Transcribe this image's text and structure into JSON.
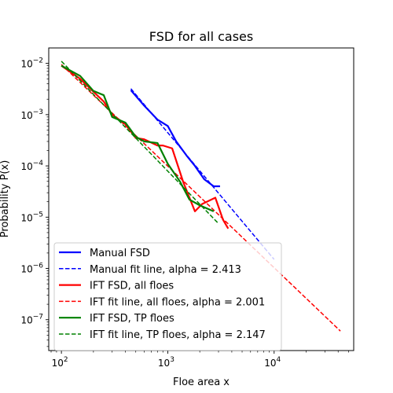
{
  "chart_data": {
    "type": "line",
    "title": "FSD for all cases",
    "xlabel": "Floe area x",
    "ylabel": "Probability P(x)",
    "xscale": "log",
    "yscale": "log",
    "xlim": [
      76,
      56000
    ],
    "ylim": [
      2.5e-08,
      0.02
    ],
    "grid": false,
    "legend_position": "lower-left",
    "x_ticks": [
      {
        "value": 100,
        "base": "10",
        "exp": "2"
      },
      {
        "value": 1000,
        "base": "10",
        "exp": "3"
      },
      {
        "value": 10000,
        "base": "10",
        "exp": "4"
      }
    ],
    "y_ticks": [
      {
        "value": 1e-07,
        "base": "10",
        "exp": "−7"
      },
      {
        "value": 1e-06,
        "base": "10",
        "exp": "−6"
      },
      {
        "value": 1e-05,
        "base": "10",
        "exp": "−5"
      },
      {
        "value": 0.0001,
        "base": "10",
        "exp": "−4"
      },
      {
        "value": 0.001,
        "base": "10",
        "exp": "−3"
      },
      {
        "value": 0.01,
        "base": "10",
        "exp": "−2"
      }
    ],
    "series": [
      {
        "name": "Manual FSD",
        "color": "#0000ff",
        "style": "solid",
        "x": [
          450,
          600,
          800,
          1000,
          1200,
          1500,
          1800,
          2200,
          2700,
          3100
        ],
        "y": [
          0.003,
          0.0015,
          0.0008,
          0.0006,
          0.0003,
          0.00016,
          0.0001,
          5.5e-05,
          4e-05,
          4e-05
        ]
      },
      {
        "name": "Manual fit line, alpha = 2.413",
        "color": "#0000ff",
        "style": "dashed",
        "x": [
          450,
          10000
        ],
        "y": [
          0.0032,
          1.5e-06
        ]
      },
      {
        "name": "IFT FSD, all floes",
        "color": "#ff0000",
        "style": "solid",
        "x": [
          100,
          150,
          200,
          250,
          300,
          400,
          500,
          600,
          800,
          900,
          1100,
          1400,
          1800,
          2100,
          2800,
          3300,
          3700
        ],
        "y": [
          0.009,
          0.005,
          0.0028,
          0.0018,
          0.001,
          0.00065,
          0.00035,
          0.00033,
          0.00025,
          0.00025,
          0.00022,
          4.8e-05,
          1.3e-05,
          1.8e-05,
          2.4e-05,
          9e-06,
          6e-06
        ]
      },
      {
        "name": "IFT fit line, all floes, alpha = 2.001",
        "color": "#ff0000",
        "style": "dashed",
        "x": [
          100,
          42000
        ],
        "y": [
          0.0095,
          6e-08
        ]
      },
      {
        "name": "IFT FSD, TP floes",
        "color": "#008000",
        "style": "solid",
        "x": [
          100,
          150,
          200,
          250,
          300,
          400,
          500,
          600,
          800,
          1000,
          1300,
          1600,
          2000,
          2700
        ],
        "y": [
          0.009,
          0.0057,
          0.0029,
          0.0024,
          0.0009,
          0.0007,
          0.00037,
          0.0003,
          0.00028,
          0.00011,
          5e-05,
          2.2e-05,
          1.7e-05,
          1.3e-05
        ]
      },
      {
        "name": "IFT fit line, TP floes, alpha = 2.147",
        "color": "#008000",
        "style": "dashed",
        "x": [
          100,
          3000
        ],
        "y": [
          0.011,
          7.5e-06
        ]
      }
    ]
  }
}
